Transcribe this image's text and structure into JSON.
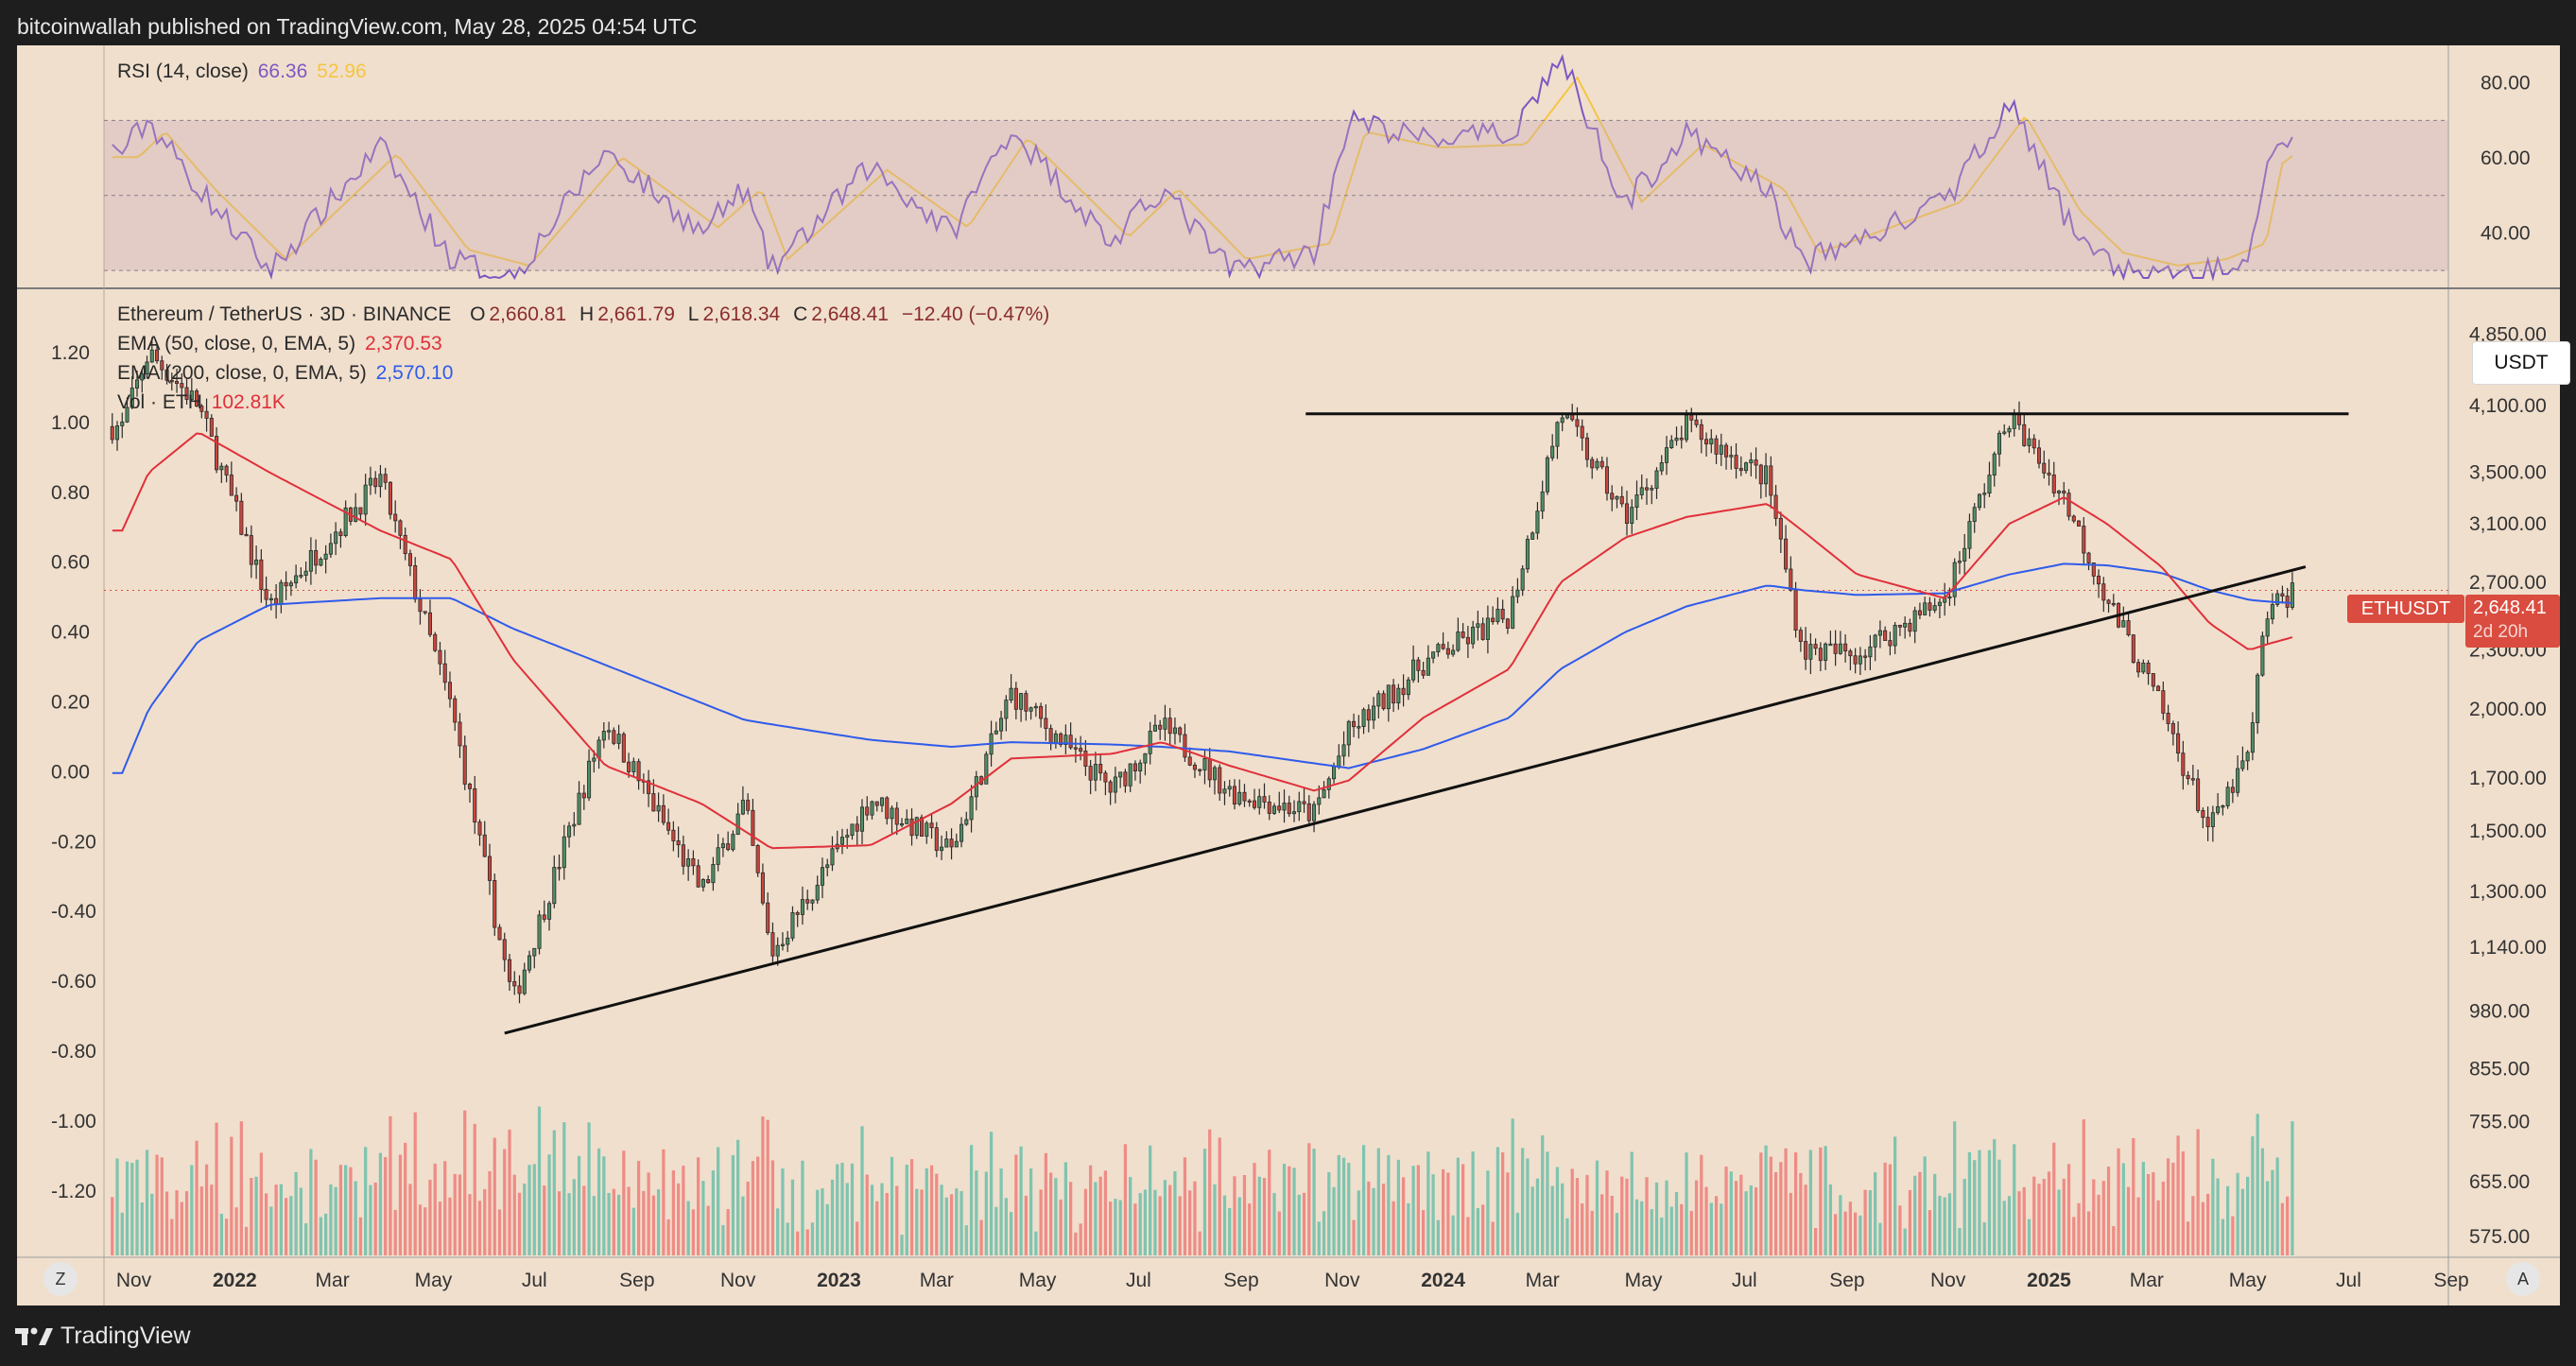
{
  "header": {
    "publisher_text": "bitcoinwallah published on TradingView.com, May 28, 2025 04:54 UTC"
  },
  "footer": {
    "brand": "TradingView"
  },
  "rsi_panel": {
    "label": "RSI (14, close)",
    "rsi_value": "66.36",
    "ma_value": "52.96",
    "axis_ticks": [
      "80.00",
      "60.00",
      "40.00"
    ],
    "band_upper": 70,
    "band_mid": 50,
    "band_lower": 30
  },
  "main_panel": {
    "symbol": "Ethereum / TetherUS · 3D · BINANCE",
    "ohlc": {
      "o_label": "O",
      "o": "2,660.81",
      "h_label": "H",
      "h": "2,661.79",
      "l_label": "L",
      "l": "2,618.34",
      "c_label": "C",
      "c": "2,648.41",
      "change": "−12.40 (−0.47%)"
    },
    "ema50": {
      "label": "EMA (50, close, 0, EMA, 5)",
      "value": "2,370.53"
    },
    "ema200": {
      "label": "EMA (200, close, 0, EMA, 5)",
      "value": "2,570.10"
    },
    "volume": {
      "label": "Vol · ETH",
      "value": "102.81K"
    },
    "currency_button": "USDT",
    "price_tag": {
      "symbol": "ETHUSDT",
      "price": "2,648.41",
      "countdown": "2d 20h"
    }
  },
  "price_axis_ticks": [
    "4,850.00",
    "4,100.00",
    "3,500.00",
    "3,100.00",
    "2,700.00",
    "2,300.00",
    "2,000.00",
    "1,700.00",
    "1,500.00",
    "1,300.00",
    "1,140.00",
    "980.00",
    "855.00",
    "755.00",
    "655.00",
    "575.00"
  ],
  "left_axis_ticks": [
    "1.20",
    "1.00",
    "0.80",
    "0.60",
    "0.40",
    "0.20",
    "0.00",
    "-0.20",
    "-0.40",
    "-0.60",
    "-0.80",
    "-1.00",
    "-1.20"
  ],
  "time_axis_labels": [
    "Nov",
    "2022",
    "Mar",
    "May",
    "Jul",
    "Sep",
    "Nov",
    "2023",
    "Mar",
    "May",
    "Jul",
    "Sep",
    "Nov",
    "2024",
    "Mar",
    "May",
    "Jul",
    "Sep",
    "Nov",
    "2025",
    "Mar",
    "May",
    "Jul",
    "Sep"
  ],
  "controls": {
    "zoom_button": "Z",
    "auto_button": "A"
  },
  "colors": {
    "bull": "#4f8f64",
    "bear": "#c9463d",
    "ema50": "#e0303a",
    "ema200": "#2f5bea",
    "rsi": "#7e57c2",
    "rsi_ma": "#f5c542",
    "vol_bull": "#7fc4b0",
    "vol_bear": "#ee8c86",
    "pane_bg": "#f0dfcd",
    "price_tag": "#d94c3f"
  },
  "chart_data": {
    "type": "candlestick",
    "timeframe": "3D",
    "price_scale": "log",
    "price_range": [
      560,
      5300
    ],
    "rsi_range": [
      27,
      88
    ],
    "key_points": [
      {
        "date": "2021-10-25",
        "price": 3900,
        "ema50": 3050,
        "ema200": 1720,
        "rsi": 62
      },
      {
        "date": "2021-11-10",
        "price": 4650,
        "ema50": 3500,
        "ema200": 2000,
        "rsi": 70
      },
      {
        "date": "2021-12-10",
        "price": 4100,
        "ema50": 3850,
        "ema200": 2350,
        "rsi": 52
      },
      {
        "date": "2022-01-22",
        "price": 2550,
        "ema50": 3500,
        "ema200": 2560,
        "rsi": 30
      },
      {
        "date": "2022-03-30",
        "price": 3450,
        "ema50": 3050,
        "ema200": 2600,
        "rsi": 63
      },
      {
        "date": "2022-05-12",
        "price": 2000,
        "ema50": 2850,
        "ema200": 2600,
        "rsi": 33
      },
      {
        "date": "2022-06-18",
        "price": 1000,
        "ema50": 2250,
        "ema200": 2420,
        "rsi": 28
      },
      {
        "date": "2022-08-13",
        "price": 1950,
        "ema50": 1750,
        "ema200": 2220,
        "rsi": 62
      },
      {
        "date": "2022-10-10",
        "price": 1300,
        "ema50": 1600,
        "ema200": 2030,
        "rsi": 40
      },
      {
        "date": "2022-11-05",
        "price": 1600,
        "ema50": 1500,
        "ema200": 1950,
        "rsi": 52
      },
      {
        "date": "2022-11-21",
        "price": 1120,
        "ema50": 1440,
        "ema200": 1930,
        "rsi": 30
      },
      {
        "date": "2023-01-20",
        "price": 1620,
        "ema50": 1450,
        "ema200": 1860,
        "rsi": 58
      },
      {
        "date": "2023-03-10",
        "price": 1430,
        "ema50": 1600,
        "ema200": 1830,
        "rsi": 40
      },
      {
        "date": "2023-04-15",
        "price": 2080,
        "ema50": 1780,
        "ema200": 1850,
        "rsi": 68
      },
      {
        "date": "2023-06-15",
        "price": 1650,
        "ema50": 1800,
        "ema200": 1840,
        "rsi": 37
      },
      {
        "date": "2023-07-15",
        "price": 1920,
        "ema50": 1850,
        "ema200": 1830,
        "rsi": 52
      },
      {
        "date": "2023-08-25",
        "price": 1650,
        "ema50": 1750,
        "ema200": 1810,
        "rsi": 30
      },
      {
        "date": "2023-10-15",
        "price": 1560,
        "ema50": 1650,
        "ema200": 1760,
        "rsi": 35
      },
      {
        "date": "2023-11-05",
        "price": 1890,
        "ema50": 1690,
        "ema200": 1740,
        "rsi": 70
      },
      {
        "date": "2023-12-20",
        "price": 2230,
        "ema50": 1960,
        "ema200": 1820,
        "rsi": 65
      },
      {
        "date": "2024-02-10",
        "price": 2500,
        "ema50": 2200,
        "ema200": 1960,
        "rsi": 66
      },
      {
        "date": "2024-03-12",
        "price": 4050,
        "ema50": 2700,
        "ema200": 2200,
        "rsi": 87
      },
      {
        "date": "2024-04-20",
        "price": 3150,
        "ema50": 3000,
        "ema200": 2400,
        "rsi": 48
      },
      {
        "date": "2024-05-27",
        "price": 3900,
        "ema50": 3150,
        "ema200": 2550,
        "rsi": 66
      },
      {
        "date": "2024-07-15",
        "price": 3450,
        "ema50": 3250,
        "ema200": 2680,
        "rsi": 52
      },
      {
        "date": "2024-08-05",
        "price": 2300,
        "ema50": 3050,
        "ema200": 2650,
        "rsi": 32
      },
      {
        "date": "2024-09-07",
        "price": 2280,
        "ema50": 2750,
        "ema200": 2620,
        "rsi": 38
      },
      {
        "date": "2024-10-30",
        "price": 2600,
        "ema50": 2600,
        "ema200": 2630,
        "rsi": 48
      },
      {
        "date": "2024-12-08",
        "price": 4000,
        "ema50": 3100,
        "ema200": 2750,
        "rsi": 75
      },
      {
        "date": "2025-01-10",
        "price": 3300,
        "ema50": 3300,
        "ema200": 2820,
        "rsi": 45
      },
      {
        "date": "2025-02-05",
        "price": 2600,
        "ema50": 3100,
        "ema200": 2810,
        "rsi": 32
      },
      {
        "date": "2025-03-10",
        "price": 2000,
        "ema50": 2800,
        "ema200": 2760,
        "rsi": 28
      },
      {
        "date": "2025-04-08",
        "price": 1500,
        "ema50": 2450,
        "ema200": 2650,
        "rsi": 30
      },
      {
        "date": "2025-05-02",
        "price": 1800,
        "ema50": 2300,
        "ema200": 2590,
        "rsi": 35
      },
      {
        "date": "2025-05-12",
        "price": 2500,
        "ema50": 2330,
        "ema200": 2580,
        "rsi": 60
      },
      {
        "date": "2025-05-28",
        "price": 2648.41,
        "ema50": 2370.53,
        "ema200": 2570.1,
        "rsi": 66.36
      }
    ],
    "trendlines": [
      {
        "name": "resistance",
        "from": {
          "date": "2023-10-10",
          "price": 4020
        },
        "to": {
          "date": "2025-07-01",
          "price": 4020
        }
      },
      {
        "name": "ascending support",
        "from": {
          "date": "2022-06-13",
          "price": 930
        },
        "to": {
          "date": "2025-06-05",
          "price": 2800
        }
      }
    ]
  }
}
